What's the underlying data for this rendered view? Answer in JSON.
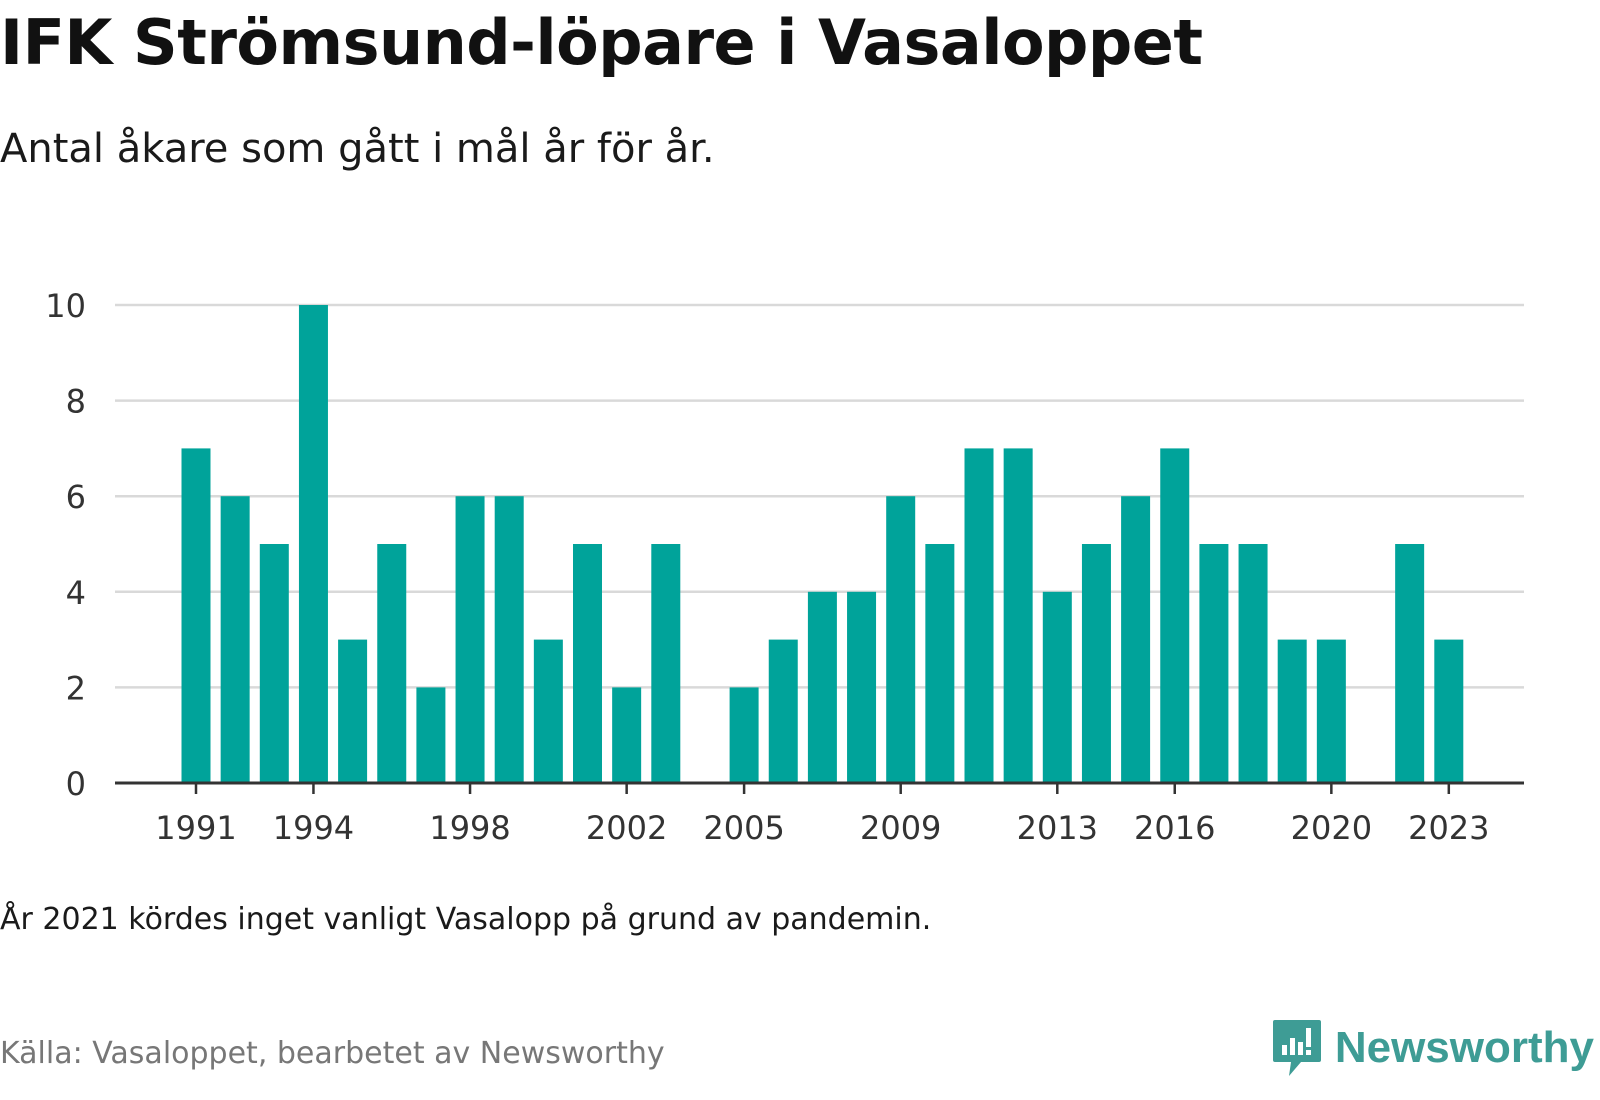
{
  "header": {
    "title": "IFK Strömsund-löpare i Vasaloppet",
    "subtitle": "Antal åkare som gått i mål år för år."
  },
  "footer": {
    "note": "År 2021 kördes inget vanligt Vasalopp på grund av pandemin.",
    "source": "Källa: Vasaloppet, bearbetet av Newsworthy",
    "brand": "Newsworthy"
  },
  "colors": {
    "bar": "#00a39a",
    "grid": "#d9d9d9",
    "axis": "#333333",
    "brand": "#3e9c95"
  },
  "chart_data": {
    "type": "bar",
    "title": "IFK Strömsund-löpare i Vasaloppet",
    "subtitle": "Antal åkare som gått i mål år för år.",
    "xlabel": "",
    "ylabel": "",
    "ylim": [
      0,
      10
    ],
    "yticks": [
      0,
      2,
      4,
      6,
      8,
      10
    ],
    "xtick_labels": [
      "1991",
      "1994",
      "1998",
      "2002",
      "2005",
      "2009",
      "2013",
      "2016",
      "2020",
      "2023"
    ],
    "grid": true,
    "legend": "none",
    "categories": [
      1991,
      1992,
      1993,
      1994,
      1995,
      1996,
      1997,
      1998,
      1999,
      2000,
      2001,
      2002,
      2003,
      2004,
      2005,
      2006,
      2007,
      2008,
      2009,
      2010,
      2011,
      2012,
      2013,
      2014,
      2015,
      2016,
      2017,
      2018,
      2019,
      2020,
      2021,
      2022,
      2023
    ],
    "values": [
      7,
      6,
      5,
      10,
      3,
      5,
      2,
      6,
      6,
      3,
      5,
      2,
      5,
      0,
      2,
      3,
      4,
      4,
      6,
      5,
      7,
      7,
      4,
      5,
      6,
      7,
      5,
      5,
      3,
      3,
      0,
      5,
      3
    ]
  }
}
